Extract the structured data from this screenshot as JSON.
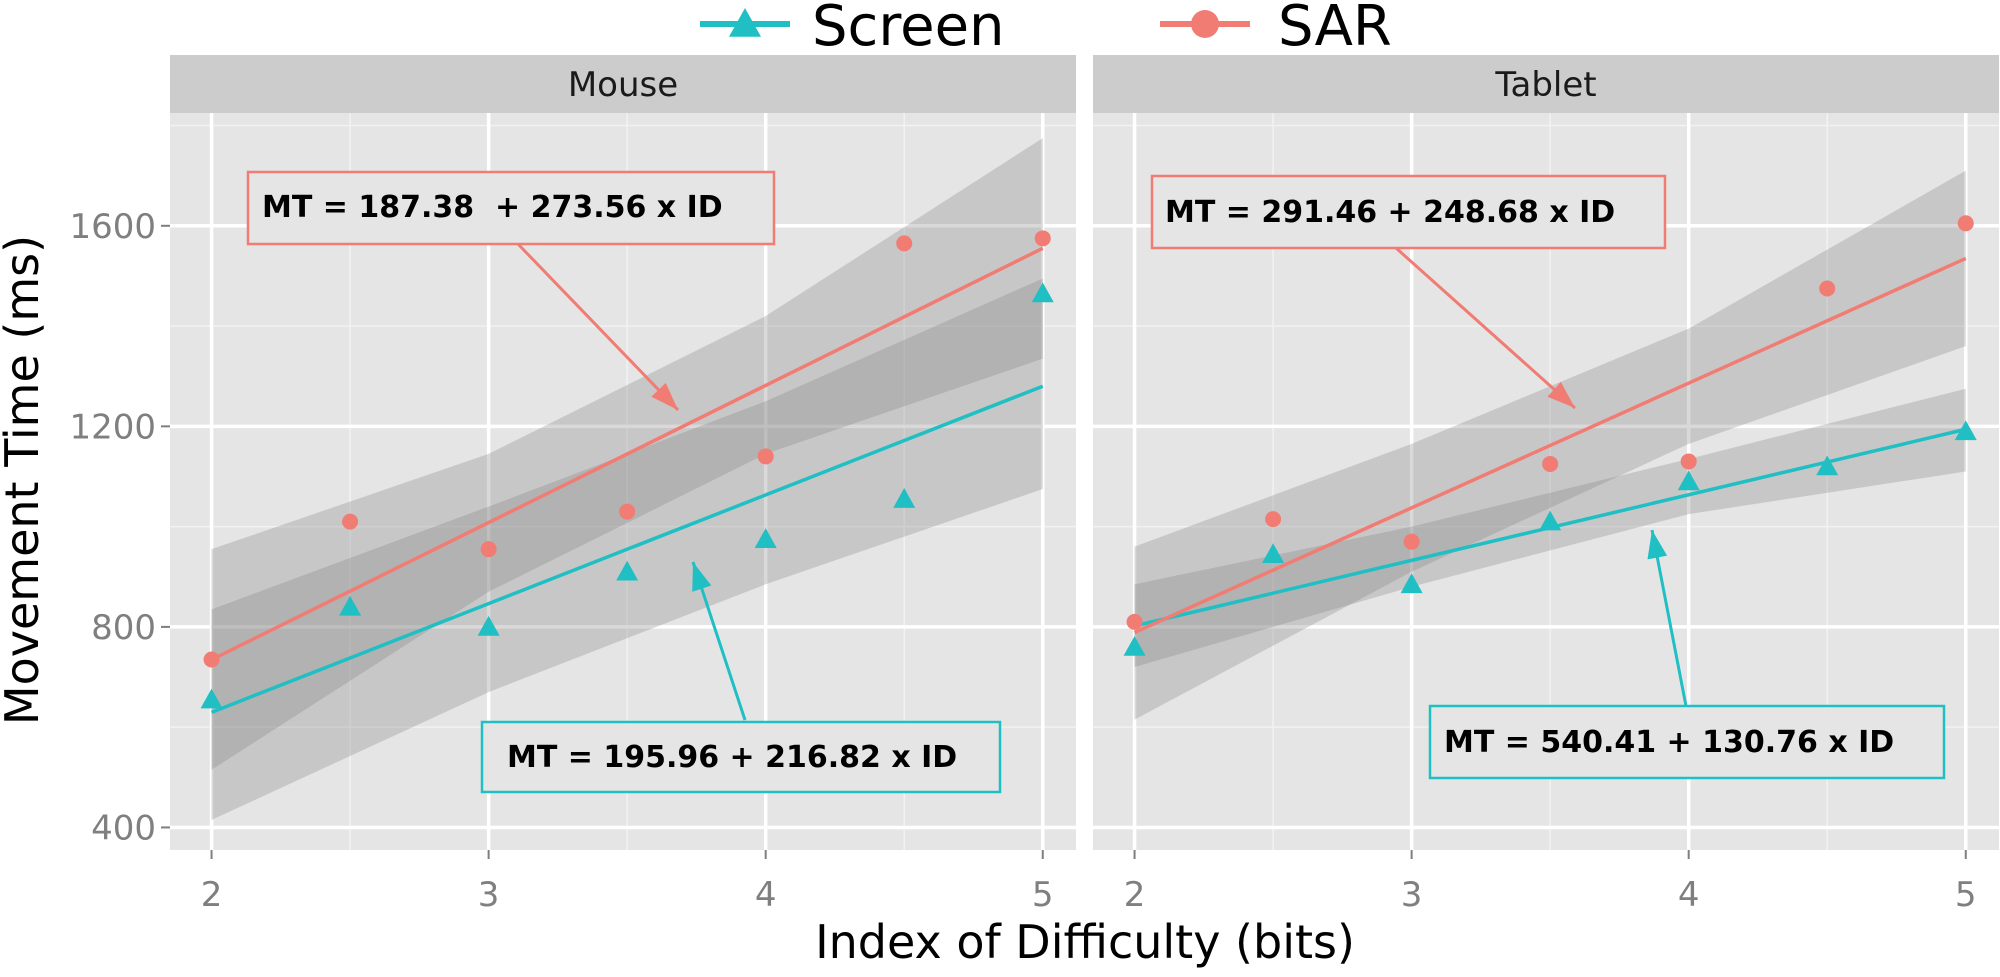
{
  "legend": {
    "items": [
      {
        "label": "Screen",
        "color": "#1fbfc4",
        "shape": "triangle"
      },
      {
        "label": "SAR",
        "color": "#f07c74",
        "shape": "circle"
      }
    ]
  },
  "chart_data": {
    "type": "scatter",
    "xlabel": "Index of Difficulty (bits)",
    "ylabel": "Movement Time (ms)",
    "xlim": [
      1.85,
      5.12
    ],
    "ylim": [
      355,
      1825
    ],
    "xticks": [
      2,
      3,
      4,
      5
    ],
    "yticks": [
      400,
      800,
      1200,
      1600
    ],
    "grid": true,
    "legend_position": "top",
    "colors": {
      "Screen": "#1fbfc4",
      "SAR": "#f07c74",
      "ribbon": "#808080",
      "panel_bg": "#e5e5e5",
      "strip_bg": "#cccccc"
    },
    "panels": [
      {
        "title": "Mouse",
        "series": [
          {
            "name": "Screen",
            "points": [
              [
                2,
                655
              ],
              [
                2.5,
                840
              ],
              [
                3,
                800
              ],
              [
                3.5,
                910
              ],
              [
                4,
                975
              ],
              [
                4.5,
                1055
              ],
              [
                5,
                1465
              ]
            ],
            "fit": {
              "intercept": 195.96,
              "slope": 216.82
            },
            "band": [
              [
                2,
                415,
                835
              ],
              [
                3,
                670,
                1040
              ],
              [
                4,
                885,
                1250
              ],
              [
                5,
                1075,
                1495
              ]
            ],
            "equation": "MT = 195.96 + 216.82 x ID"
          },
          {
            "name": "SAR",
            "points": [
              [
                2,
                735
              ],
              [
                2.5,
                1010
              ],
              [
                3,
                955
              ],
              [
                3.5,
                1030
              ],
              [
                4,
                1140
              ],
              [
                4.5,
                1565
              ],
              [
                5,
                1575
              ]
            ],
            "fit": {
              "intercept": 187.38,
              "slope": 273.56
            },
            "band": [
              [
                2,
                515,
                955
              ],
              [
                3,
                870,
                1145
              ],
              [
                4,
                1145,
                1420
              ],
              [
                5,
                1335,
                1775
              ]
            ],
            "equation": "MT = 187.38  + 273.56 x ID"
          }
        ]
      },
      {
        "title": "Tablet",
        "series": [
          {
            "name": "Screen",
            "points": [
              [
                2,
                760
              ],
              [
                2.5,
                945
              ],
              [
                3,
                885
              ],
              [
                3.5,
                1010
              ],
              [
                4,
                1090
              ],
              [
                4.5,
                1120
              ],
              [
                5,
                1190
              ]
            ],
            "fit": {
              "intercept": 540.41,
              "slope": 130.76
            },
            "band": [
              [
                2,
                720,
                885
              ],
              [
                3,
                880,
                1000
              ],
              [
                4,
                1025,
                1135
              ],
              [
                5,
                1110,
                1275
              ]
            ],
            "equation": "MT = 540.41 + 130.76 x ID"
          },
          {
            "name": "SAR",
            "points": [
              [
                2,
                810
              ],
              [
                2.5,
                1015
              ],
              [
                3,
                970
              ],
              [
                3.5,
                1125
              ],
              [
                4,
                1130
              ],
              [
                4.5,
                1475
              ],
              [
                5,
                1605
              ]
            ],
            "fit": {
              "intercept": 291.46,
              "slope": 248.68
            },
            "band": [
              [
                2,
                615,
                960
              ],
              [
                3,
                910,
                1165
              ],
              [
                4,
                1165,
                1395
              ],
              [
                5,
                1360,
                1710
              ]
            ],
            "equation": "MT = 291.46 + 248.68 x ID"
          }
        ]
      }
    ]
  }
}
